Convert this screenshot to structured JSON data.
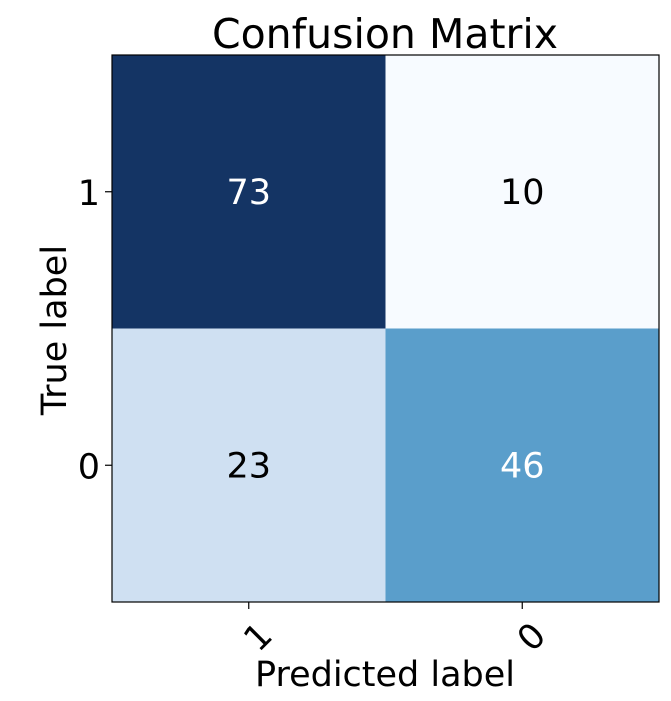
{
  "chart_data": {
    "type": "heatmap",
    "title": "Confusion Matrix",
    "xlabel": "Predicted label",
    "ylabel": "True label",
    "x_categories": [
      "1",
      "0"
    ],
    "y_categories": [
      "1",
      "0"
    ],
    "values": [
      [
        73,
        10
      ],
      [
        23,
        46
      ]
    ],
    "colormap": "Blues",
    "grid": false,
    "colors": {
      "cells": [
        [
          "#143464",
          "#f7fbff"
        ],
        [
          "#cfe0f2",
          "#5a9ecb"
        ]
      ],
      "text_light": "#ffffff",
      "text_dark": "#000000",
      "axis": "#000000"
    }
  }
}
